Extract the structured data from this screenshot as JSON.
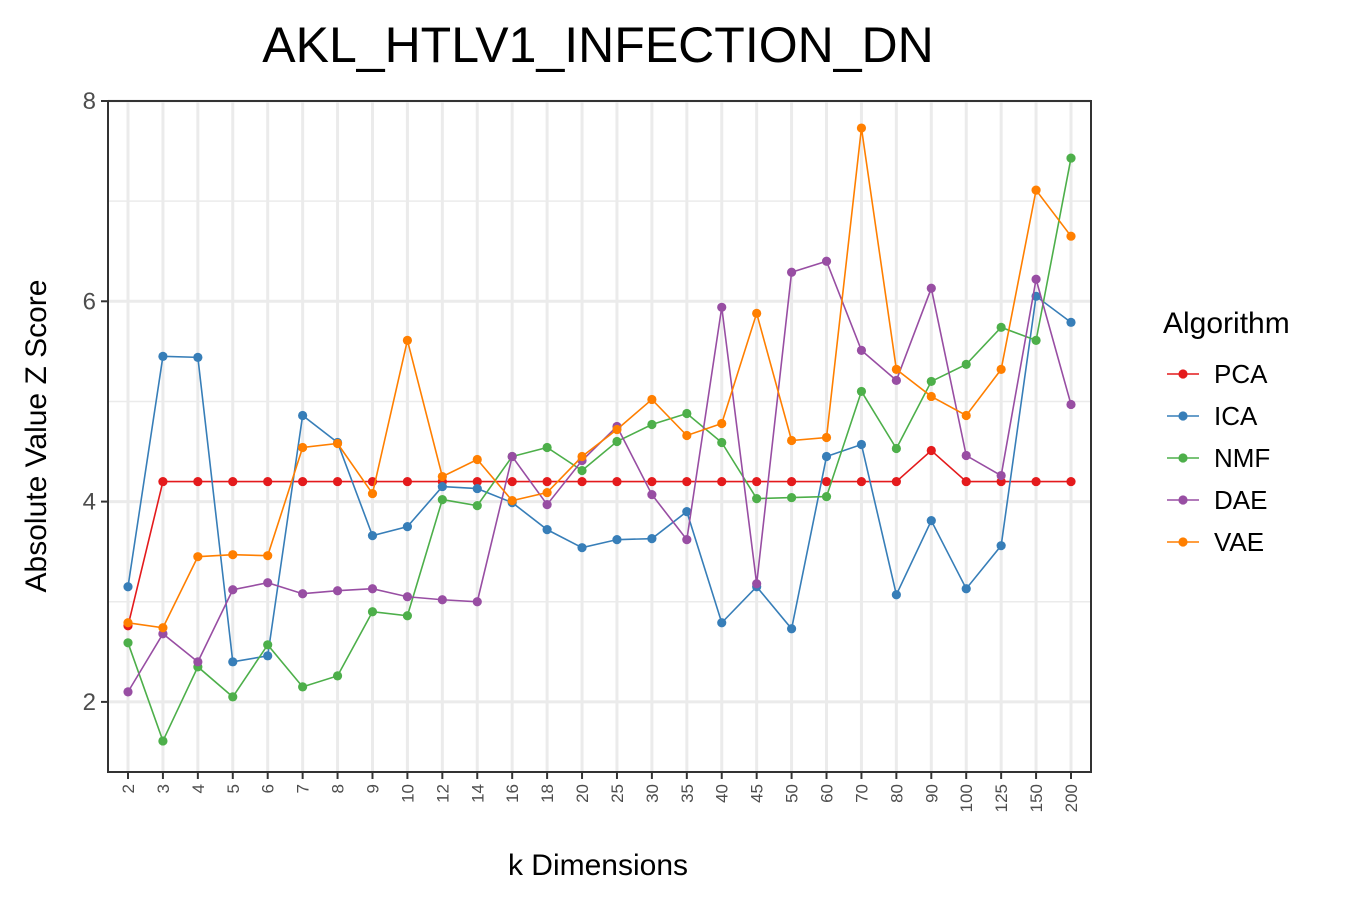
{
  "chart_data": {
    "type": "line",
    "title": "AKL_HTLV1_INFECTION_DN",
    "xlabel": "k Dimensions",
    "ylabel": "Absolute Value Z Score",
    "categories": [
      "2",
      "3",
      "4",
      "5",
      "6",
      "7",
      "8",
      "9",
      "10",
      "12",
      "14",
      "16",
      "18",
      "20",
      "25",
      "30",
      "35",
      "40",
      "45",
      "50",
      "60",
      "70",
      "80",
      "90",
      "100",
      "125",
      "150",
      "200"
    ],
    "ylim": [
      1.3,
      8.0
    ],
    "yticks": [
      "2",
      "4",
      "6",
      "8"
    ],
    "grid": true,
    "legend_title": "Algorithm",
    "legend_position": "right",
    "series": [
      {
        "name": "PCA",
        "color": "#e41a1c",
        "values": [
          2.76,
          4.2,
          4.2,
          4.2,
          4.2,
          4.2,
          4.2,
          4.2,
          4.2,
          4.2,
          4.2,
          4.2,
          4.2,
          4.2,
          4.2,
          4.2,
          4.2,
          4.2,
          4.2,
          4.2,
          4.2,
          4.2,
          4.2,
          4.51,
          4.2,
          4.2,
          4.2,
          4.2
        ]
      },
      {
        "name": "ICA",
        "color": "#377eb8",
        "values": [
          3.15,
          5.45,
          5.44,
          2.4,
          2.46,
          4.86,
          4.59,
          3.66,
          3.75,
          4.15,
          4.13,
          3.99,
          3.72,
          3.54,
          3.62,
          3.63,
          3.9,
          2.79,
          3.15,
          2.73,
          4.45,
          4.57,
          3.07,
          3.81,
          3.13,
          3.56,
          6.05,
          5.79
        ]
      },
      {
        "name": "NMF",
        "color": "#4daf4a",
        "values": [
          2.59,
          1.61,
          2.35,
          2.05,
          2.57,
          2.15,
          2.26,
          2.9,
          2.86,
          4.02,
          3.96,
          4.45,
          4.54,
          4.31,
          4.6,
          4.77,
          4.88,
          4.59,
          4.03,
          4.04,
          4.05,
          5.1,
          4.53,
          5.2,
          5.37,
          5.74,
          5.61,
          7.43
        ]
      },
      {
        "name": "DAE",
        "color": "#984ea3",
        "values": [
          2.1,
          2.68,
          2.4,
          3.12,
          3.19,
          3.08,
          3.11,
          3.13,
          3.05,
          3.02,
          3.0,
          4.45,
          3.97,
          4.41,
          4.75,
          4.07,
          3.62,
          5.94,
          3.18,
          6.29,
          6.4,
          5.51,
          5.21,
          6.13,
          4.46,
          4.26,
          6.22,
          4.97
        ]
      },
      {
        "name": "VAE",
        "color": "#ff7f00",
        "values": [
          2.79,
          2.74,
          3.45,
          3.47,
          3.46,
          4.54,
          4.58,
          4.08,
          5.61,
          4.25,
          4.42,
          4.01,
          4.09,
          4.45,
          4.72,
          5.02,
          4.66,
          4.78,
          5.88,
          4.61,
          4.64,
          7.73,
          5.32,
          5.05,
          4.86,
          5.32,
          7.11,
          6.65
        ]
      }
    ]
  }
}
